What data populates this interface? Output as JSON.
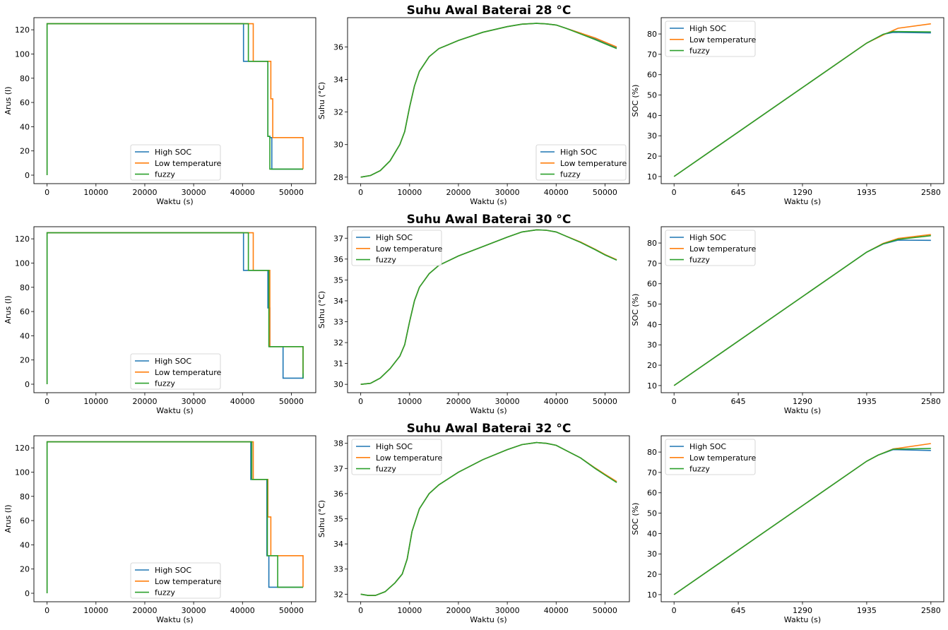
{
  "colors": {
    "High SOC": "#1f77b4",
    "Low temperature": "#ff7f0e",
    "fuzzy": "#2ca02c"
  },
  "rows": [
    {
      "title": "Suhu Awal Baterai 28 °C"
    },
    {
      "title": "Suhu Awal Baterai 30 °C"
    },
    {
      "title": "Suhu Awal Baterai 32 °C"
    }
  ],
  "chart_data": [
    {
      "type": "line",
      "xlabel": "Waktu (s)",
      "ylabel": "Arus (I)",
      "xlim": [
        -2700,
        55000
      ],
      "ylim": [
        -7,
        130
      ],
      "xticks": [
        0,
        10000,
        20000,
        30000,
        40000,
        50000
      ],
      "yticks": [
        0,
        20,
        40,
        60,
        80,
        100,
        120
      ],
      "legend": "lower center",
      "series": [
        {
          "name": "High SOC",
          "x": [
            0,
            0,
            40200,
            40200,
            45200,
            45200,
            45600,
            45600,
            46000,
            46000,
            52400,
            52400
          ],
          "y": [
            0,
            125,
            125,
            94,
            94,
            32,
            32,
            31,
            31,
            5,
            5,
            5
          ]
        },
        {
          "name": "Low temperature",
          "x": [
            0,
            0,
            42200,
            42200,
            45800,
            45800,
            46200,
            46200,
            52400,
            52400
          ],
          "y": [
            0,
            125,
            125,
            94,
            94,
            63,
            63,
            31,
            31,
            5
          ]
        },
        {
          "name": "fuzzy",
          "x": [
            0,
            0,
            41200,
            41200,
            45200,
            45200,
            45600,
            45600,
            52400,
            52400
          ],
          "y": [
            0,
            125,
            125,
            94,
            94,
            32,
            32,
            5,
            5,
            5
          ]
        }
      ]
    },
    {
      "type": "line",
      "xlabel": "Waktu (s)",
      "ylabel": "Suhu (°C)",
      "xlim": [
        -2700,
        55000
      ],
      "ylim": [
        27.6,
        37.8
      ],
      "xticks": [
        0,
        10000,
        20000,
        30000,
        40000,
        50000
      ],
      "yticks": [
        28,
        30,
        32,
        34,
        36
      ],
      "legend": "lower right",
      "series": [
        {
          "name": "High SOC",
          "x": [
            0,
            2000,
            4000,
            6000,
            8000,
            9000,
            10000,
            11000,
            12000,
            14000,
            16000,
            20000,
            25000,
            30000,
            33000,
            36000,
            38000,
            40000,
            42000,
            45000,
            48000,
            50000,
            52400
          ],
          "y": [
            28,
            28.1,
            28.4,
            29.0,
            30.0,
            30.8,
            32.3,
            33.6,
            34.5,
            35.4,
            35.9,
            36.4,
            36.9,
            37.25,
            37.4,
            37.45,
            37.42,
            37.35,
            37.15,
            36.85,
            36.5,
            36.25,
            35.95
          ]
        },
        {
          "name": "Low temperature",
          "x": [
            0,
            2000,
            4000,
            6000,
            8000,
            9000,
            10000,
            11000,
            12000,
            14000,
            16000,
            20000,
            25000,
            30000,
            33000,
            36000,
            38000,
            40000,
            42000,
            45000,
            48000,
            50000,
            52400
          ],
          "y": [
            28,
            28.1,
            28.4,
            29.0,
            30.0,
            30.8,
            32.3,
            33.6,
            34.5,
            35.4,
            35.9,
            36.4,
            36.9,
            37.25,
            37.4,
            37.45,
            37.42,
            37.35,
            37.15,
            36.85,
            36.55,
            36.3,
            36.0
          ]
        },
        {
          "name": "fuzzy",
          "x": [
            0,
            2000,
            4000,
            6000,
            8000,
            9000,
            10000,
            11000,
            12000,
            14000,
            16000,
            20000,
            25000,
            30000,
            33000,
            36000,
            38000,
            40000,
            42000,
            45000,
            48000,
            50000,
            52400
          ],
          "y": [
            28,
            28.1,
            28.4,
            29.0,
            30.0,
            30.8,
            32.3,
            33.6,
            34.5,
            35.4,
            35.9,
            36.4,
            36.9,
            37.25,
            37.4,
            37.45,
            37.42,
            37.35,
            37.15,
            36.8,
            36.45,
            36.2,
            35.9
          ]
        }
      ]
    },
    {
      "type": "line",
      "xlabel": "Waktu (s)",
      "ylabel": "SOC (%)",
      "xlim": [
        -129,
        2709
      ],
      "ylim": [
        6.5,
        88
      ],
      "xticks": [
        0,
        645,
        1290,
        1935,
        2580
      ],
      "yticks": [
        10,
        20,
        30,
        40,
        50,
        60,
        70,
        80
      ],
      "legend": "upper left",
      "series": [
        {
          "name": "High SOC",
          "x": [
            0,
            1935,
            2100,
            2200,
            2580
          ],
          "y": [
            10,
            75.5,
            79.8,
            80.8,
            80.5
          ]
        },
        {
          "name": "Low temperature",
          "x": [
            0,
            1935,
            2100,
            2250,
            2580
          ],
          "y": [
            10,
            75.5,
            79.5,
            82.8,
            85
          ]
        },
        {
          "name": "fuzzy",
          "x": [
            0,
            1935,
            2100,
            2200,
            2580
          ],
          "y": [
            10,
            75.5,
            79.8,
            81.2,
            81
          ]
        }
      ]
    },
    {
      "type": "line",
      "xlabel": "Waktu (s)",
      "ylabel": "Arus (I)",
      "xlim": [
        -2700,
        55000
      ],
      "ylim": [
        -7,
        130
      ],
      "xticks": [
        0,
        10000,
        20000,
        30000,
        40000,
        50000
      ],
      "yticks": [
        0,
        20,
        40,
        60,
        80,
        100,
        120
      ],
      "legend": "lower center",
      "series": [
        {
          "name": "High SOC",
          "x": [
            0,
            0,
            40200,
            40200,
            45200,
            45200,
            45600,
            45600,
            48300,
            48300,
            52400,
            52400
          ],
          "y": [
            0,
            125,
            125,
            94,
            94,
            63,
            63,
            31,
            31,
            5,
            5,
            9
          ]
        },
        {
          "name": "Low temperature",
          "x": [
            0,
            0,
            42200,
            42200,
            45600,
            45600,
            52400,
            52400
          ],
          "y": [
            0,
            125,
            125,
            94,
            94,
            31,
            31,
            9
          ]
        },
        {
          "name": "fuzzy",
          "x": [
            0,
            0,
            41200,
            41200,
            45400,
            45400,
            52400,
            52400
          ],
          "y": [
            0,
            125,
            125,
            94,
            94,
            31,
            31,
            5
          ]
        }
      ]
    },
    {
      "type": "line",
      "xlabel": "Waktu (s)",
      "ylabel": "Suhu (°C)",
      "xlim": [
        -2700,
        55000
      ],
      "ylim": [
        29.6,
        37.55
      ],
      "xticks": [
        0,
        10000,
        20000,
        30000,
        40000,
        50000
      ],
      "yticks": [
        30,
        31,
        32,
        33,
        34,
        35,
        36,
        37
      ],
      "legend": "upper left",
      "series": [
        {
          "name": "High SOC",
          "x": [
            0,
            2000,
            4000,
            6000,
            8000,
            9000,
            10000,
            11000,
            12000,
            14000,
            16000,
            20000,
            25000,
            30000,
            33000,
            36000,
            38000,
            40000,
            42000,
            45000,
            48000,
            50000,
            52400
          ],
          "y": [
            30,
            30.05,
            30.3,
            30.75,
            31.35,
            31.9,
            33.0,
            34.0,
            34.65,
            35.3,
            35.7,
            36.15,
            36.6,
            37.05,
            37.3,
            37.4,
            37.38,
            37.3,
            37.1,
            36.8,
            36.45,
            36.2,
            35.95
          ]
        },
        {
          "name": "Low temperature",
          "x": [
            0,
            2000,
            4000,
            6000,
            8000,
            9000,
            10000,
            11000,
            12000,
            14000,
            16000,
            20000,
            25000,
            30000,
            33000,
            36000,
            38000,
            40000,
            42000,
            45000,
            48000,
            50000,
            52400
          ],
          "y": [
            30,
            30.05,
            30.3,
            30.75,
            31.35,
            31.9,
            33.0,
            34.0,
            34.65,
            35.3,
            35.7,
            36.15,
            36.6,
            37.05,
            37.3,
            37.4,
            37.38,
            37.3,
            37.1,
            36.82,
            36.47,
            36.22,
            35.97
          ]
        },
        {
          "name": "fuzzy",
          "x": [
            0,
            2000,
            4000,
            6000,
            8000,
            9000,
            10000,
            11000,
            12000,
            14000,
            16000,
            20000,
            25000,
            30000,
            33000,
            36000,
            38000,
            40000,
            42000,
            45000,
            48000,
            50000,
            52400
          ],
          "y": [
            30,
            30.05,
            30.3,
            30.75,
            31.35,
            31.9,
            33.0,
            34.0,
            34.65,
            35.3,
            35.7,
            36.15,
            36.6,
            37.05,
            37.3,
            37.4,
            37.38,
            37.3,
            37.1,
            36.8,
            36.45,
            36.2,
            35.95
          ]
        }
      ]
    },
    {
      "type": "line",
      "xlabel": "Waktu (s)",
      "ylabel": "SOC (%)",
      "xlim": [
        -129,
        2709
      ],
      "ylim": [
        6.5,
        88
      ],
      "xticks": [
        0,
        645,
        1290,
        1935,
        2580
      ],
      "yticks": [
        10,
        20,
        30,
        40,
        50,
        60,
        70,
        80
      ],
      "legend": "upper left",
      "series": [
        {
          "name": "High SOC",
          "x": [
            0,
            1935,
            2100,
            2250,
            2580
          ],
          "y": [
            10,
            75.5,
            79.5,
            81.4,
            81.3
          ]
        },
        {
          "name": "Low temperature",
          "x": [
            0,
            1935,
            2100,
            2250,
            2580
          ],
          "y": [
            10,
            75.5,
            79.8,
            82.2,
            84.2
          ]
        },
        {
          "name": "fuzzy",
          "x": [
            0,
            1935,
            2100,
            2250,
            2580
          ],
          "y": [
            10,
            75.5,
            79.6,
            81.8,
            83.6
          ]
        }
      ]
    },
    {
      "type": "line",
      "xlabel": "Waktu (s)",
      "ylabel": "Arus (I)",
      "xlim": [
        -2700,
        55000
      ],
      "ylim": [
        -7,
        130
      ],
      "xticks": [
        0,
        10000,
        20000,
        30000,
        40000,
        50000
      ],
      "yticks": [
        0,
        20,
        40,
        60,
        80,
        100,
        120
      ],
      "legend": "lower center",
      "series": [
        {
          "name": "High SOC",
          "x": [
            0,
            0,
            41700,
            41700,
            45000,
            45000,
            45400,
            45400,
            52400,
            52400
          ],
          "y": [
            0,
            125,
            125,
            94,
            94,
            31,
            31,
            5,
            5,
            5
          ]
        },
        {
          "name": "Low temperature",
          "x": [
            0,
            0,
            42200,
            42200,
            45200,
            45200,
            45800,
            45800,
            52400,
            52400
          ],
          "y": [
            0,
            125,
            125,
            94,
            94,
            63,
            63,
            31,
            31,
            5
          ]
        },
        {
          "name": "fuzzy",
          "x": [
            0,
            0,
            41900,
            41900,
            45100,
            45100,
            47200,
            47200,
            52400,
            52400
          ],
          "y": [
            0,
            125,
            125,
            94,
            94,
            31,
            31,
            5,
            5,
            5
          ]
        }
      ]
    },
    {
      "type": "line",
      "xlabel": "Waktu (s)",
      "ylabel": "Suhu (°C)",
      "xlim": [
        -2700,
        55000
      ],
      "ylim": [
        31.7,
        38.3
      ],
      "xticks": [
        0,
        10000,
        20000,
        30000,
        40000,
        50000
      ],
      "yticks": [
        32,
        33,
        34,
        35,
        36,
        37,
        38
      ],
      "legend": "upper left",
      "series": [
        {
          "name": "High SOC",
          "x": [
            0,
            1500,
            3000,
            5000,
            7000,
            8500,
            9500,
            10500,
            12000,
            14000,
            16000,
            20000,
            25000,
            30000,
            33000,
            36000,
            38000,
            40000,
            42000,
            45000,
            48000,
            50000,
            52400
          ],
          "y": [
            32,
            31.95,
            31.95,
            32.1,
            32.45,
            32.8,
            33.4,
            34.5,
            35.4,
            36.0,
            36.35,
            36.85,
            37.35,
            37.75,
            37.95,
            38.03,
            38.0,
            37.92,
            37.72,
            37.42,
            37.0,
            36.75,
            36.45
          ]
        },
        {
          "name": "Low temperature",
          "x": [
            0,
            1500,
            3000,
            5000,
            7000,
            8500,
            9500,
            10500,
            12000,
            14000,
            16000,
            20000,
            25000,
            30000,
            33000,
            36000,
            38000,
            40000,
            42000,
            45000,
            48000,
            50000,
            52400
          ],
          "y": [
            32,
            31.95,
            31.95,
            32.1,
            32.45,
            32.8,
            33.4,
            34.5,
            35.4,
            36.0,
            36.35,
            36.85,
            37.35,
            37.75,
            37.95,
            38.03,
            38.0,
            37.92,
            37.72,
            37.42,
            37.02,
            36.77,
            36.48
          ]
        },
        {
          "name": "fuzzy",
          "x": [
            0,
            1500,
            3000,
            5000,
            7000,
            8500,
            9500,
            10500,
            12000,
            14000,
            16000,
            20000,
            25000,
            30000,
            33000,
            36000,
            38000,
            40000,
            42000,
            45000,
            48000,
            50000,
            52400
          ],
          "y": [
            32,
            31.95,
            31.95,
            32.1,
            32.45,
            32.8,
            33.4,
            34.5,
            35.4,
            36.0,
            36.35,
            36.85,
            37.35,
            37.75,
            37.95,
            38.03,
            38.0,
            37.92,
            37.72,
            37.42,
            37.0,
            36.74,
            36.44
          ]
        }
      ]
    },
    {
      "type": "line",
      "xlabel": "Waktu (s)",
      "ylabel": "SOC (%)",
      "xlim": [
        -129,
        2709
      ],
      "ylim": [
        6.5,
        88
      ],
      "xticks": [
        0,
        645,
        1290,
        1935,
        2580
      ],
      "yticks": [
        10,
        20,
        30,
        40,
        50,
        60,
        70,
        80
      ],
      "legend": "upper left",
      "series": [
        {
          "name": "High SOC",
          "x": [
            0,
            1935,
            2050,
            2200,
            2580
          ],
          "y": [
            10,
            75.5,
            78.5,
            81.2,
            80.8
          ]
        },
        {
          "name": "Low temperature",
          "x": [
            0,
            1935,
            2050,
            2200,
            2580
          ],
          "y": [
            10,
            75.5,
            78.5,
            81.5,
            84.2
          ]
        },
        {
          "name": "fuzzy",
          "x": [
            0,
            1935,
            2050,
            2200,
            2580
          ],
          "y": [
            10,
            75.5,
            78.5,
            81.4,
            81.8
          ]
        }
      ]
    }
  ]
}
